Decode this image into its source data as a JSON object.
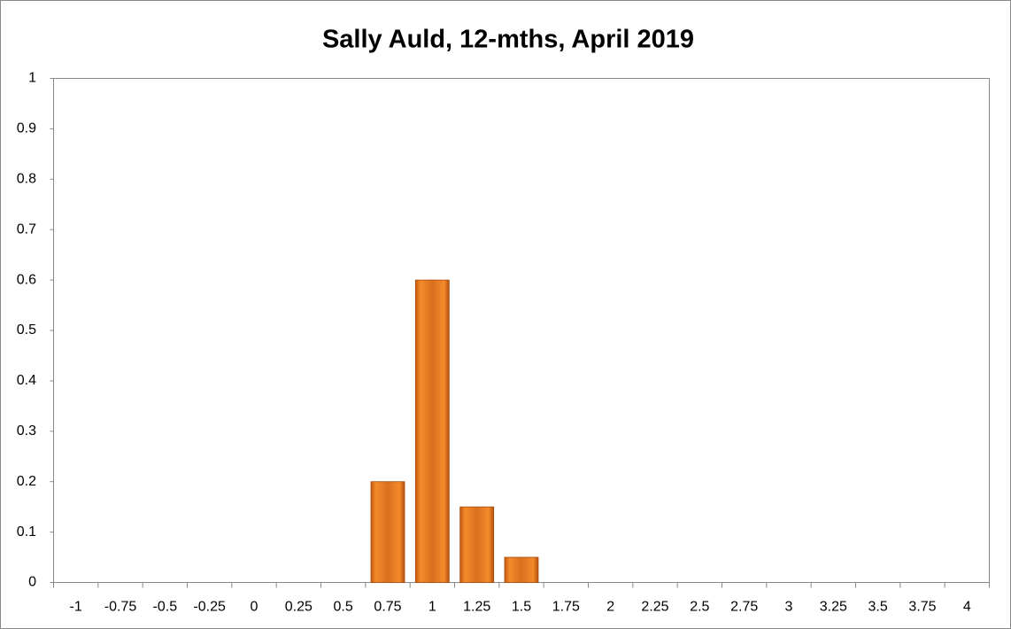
{
  "chart_data": {
    "type": "bar",
    "title": "Sally Auld, 12-mths, April 2019",
    "categories": [
      "-1",
      "-0.75",
      "-0.5",
      "-0.25",
      "0",
      "0.25",
      "0.5",
      "0.75",
      "1",
      "1.25",
      "1.5",
      "1.75",
      "2",
      "2.25",
      "2.5",
      "2.75",
      "3",
      "3.25",
      "3.5",
      "3.75",
      "4"
    ],
    "values": [
      0,
      0,
      0,
      0,
      0,
      0,
      0,
      0.2,
      0.6,
      0.15,
      0.05,
      0,
      0,
      0,
      0,
      0,
      0,
      0,
      0,
      0,
      0
    ],
    "color": "#f79646",
    "ylim": [
      0,
      1
    ],
    "yticks": [
      0,
      0.1,
      0.2,
      0.3,
      0.4,
      0.5,
      0.6,
      0.7,
      0.8,
      0.9,
      1
    ],
    "grid": false
  }
}
